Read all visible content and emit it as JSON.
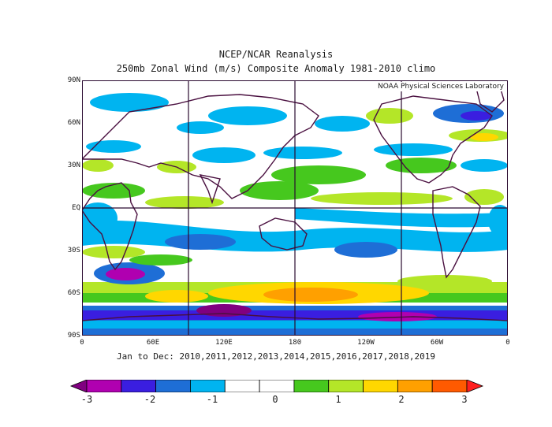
{
  "header": {
    "title": "NCEP/NCAR Reanalysis",
    "subtitle": "250mb Zonal Wind (m/s) Composite Anomaly 1981-2010 climo"
  },
  "map": {
    "credit": "NOAA Physical Sciences Laboratory",
    "lat_labels": [
      "90N",
      "60N",
      "30N",
      "EQ",
      "30S",
      "60S",
      "90S"
    ],
    "lon_labels": [
      "0",
      "60E",
      "120E",
      "180",
      "120W",
      "60W",
      "0"
    ]
  },
  "caption": "Jan to Dec: 2010,2011,2012,2013,2014,2015,2016,2017,2018,2019",
  "colorbar": {
    "labels": [
      "-3",
      "-2",
      "-1",
      "0",
      "1",
      "2",
      "3"
    ],
    "colors": [
      "#800080",
      "#b000b0",
      "#3a1ee0",
      "#1e6ed6",
      "#00b4f0",
      "#ffffff",
      "#ffffff",
      "#46c81e",
      "#b4e628",
      "#ffd700",
      "#ffa000",
      "#ff5a00",
      "#ff1e1e"
    ]
  }
}
